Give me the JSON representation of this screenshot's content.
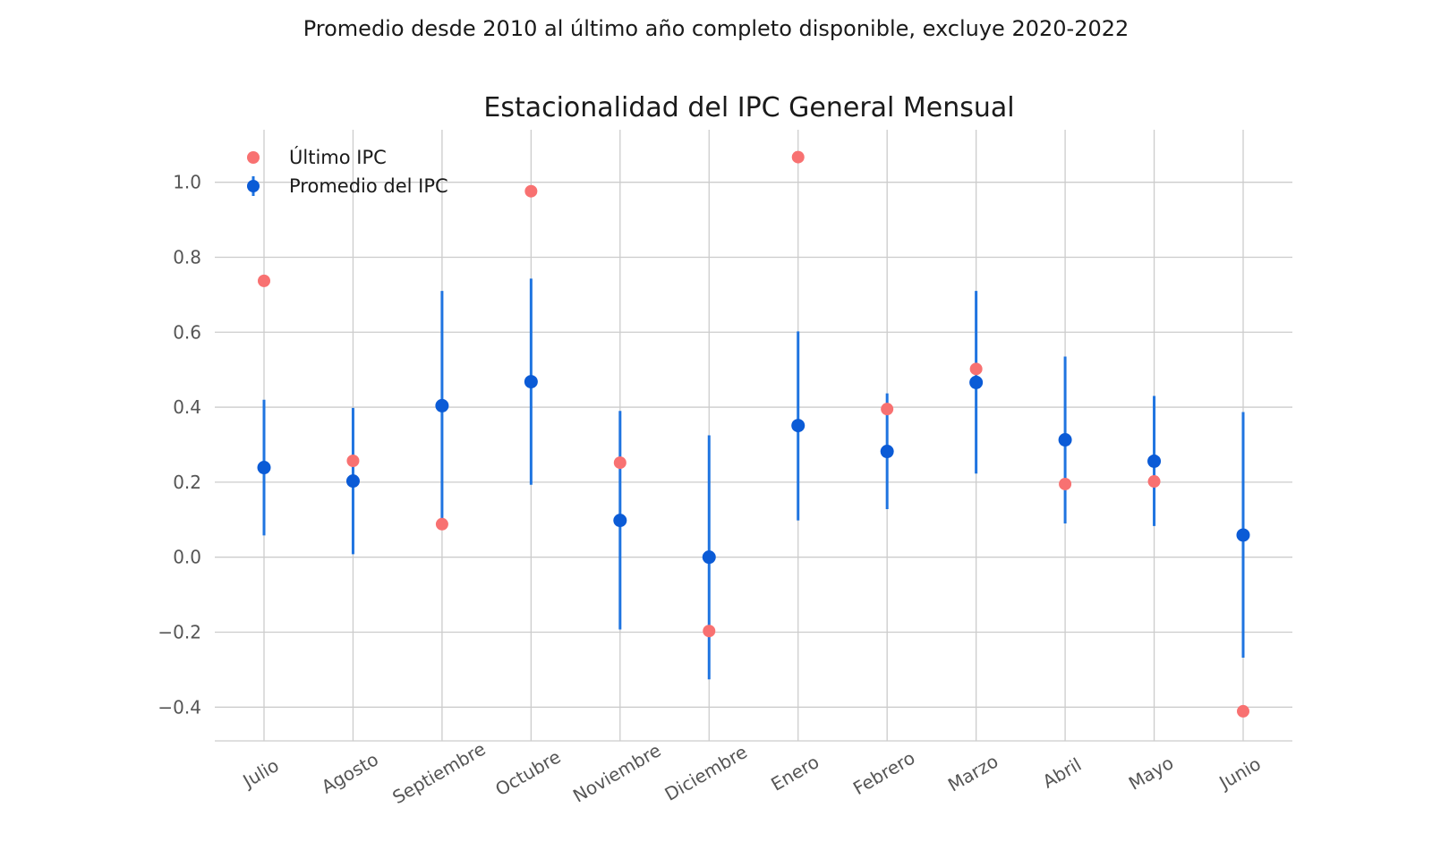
{
  "chart_data": {
    "type": "scatter",
    "suptitle": "Promedio desde 2010 al último año completo disponible, excluye 2020-2022",
    "title": "Estacionalidad del IPC General Mensual",
    "xlabel": "",
    "ylabel": "",
    "categories": [
      "Julio",
      "Agosto",
      "Septiembre",
      "Octubre",
      "Noviembre",
      "Diciembre",
      "Enero",
      "Febrero",
      "Marzo",
      "Abril",
      "Mayo",
      "Junio"
    ],
    "ylim": [
      -0.49,
      1.14
    ],
    "yticks": [
      -0.4,
      -0.2,
      0.0,
      0.2,
      0.4,
      0.6,
      0.8,
      1.0
    ],
    "ytick_labels": [
      "−0.4",
      "−0.2",
      "0.0",
      "0.2",
      "0.4",
      "0.6",
      "0.8",
      "1.0"
    ],
    "grid": true,
    "legend_position": "top-left",
    "series": [
      {
        "name": "Último IPC",
        "kind": "points",
        "color": "#f87171",
        "values": [
          0.737,
          0.257,
          0.088,
          0.976,
          0.252,
          -0.197,
          1.067,
          0.395,
          0.502,
          0.195,
          0.202,
          -0.411
        ]
      },
      {
        "name": "Promedio del IPC",
        "kind": "errorbar",
        "color": "#0b5bd6",
        "bar_color": "#1f74e0",
        "values": [
          0.239,
          0.203,
          0.404,
          0.468,
          0.098,
          0.0,
          0.351,
          0.282,
          0.466,
          0.313,
          0.256,
          0.059
        ],
        "lower": [
          0.058,
          0.008,
          0.098,
          0.193,
          -0.193,
          -0.326,
          0.098,
          0.128,
          0.223,
          0.09,
          0.083,
          -0.268
        ],
        "upper": [
          0.42,
          0.398,
          0.71,
          0.743,
          0.39,
          0.325,
          0.602,
          0.437,
          0.71,
          0.535,
          0.43,
          0.387
        ]
      }
    ]
  }
}
